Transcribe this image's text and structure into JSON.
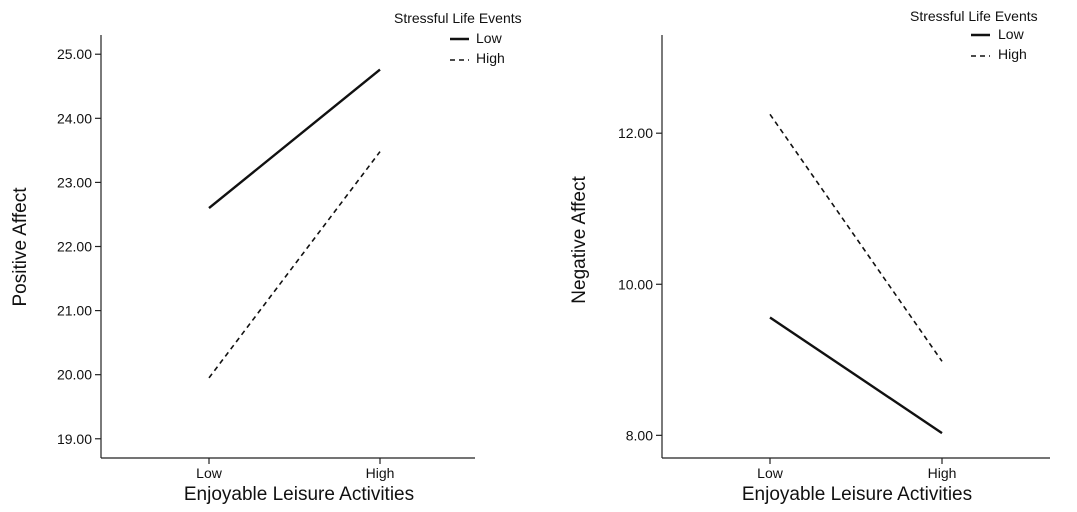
{
  "chart_data": [
    {
      "type": "line",
      "xlabel": "Enjoyable Leisure Activities",
      "ylabel": "Positive Affect",
      "categories": [
        "Low",
        "High"
      ],
      "ylim": [
        18.7,
        25.3
      ],
      "yticks": [
        19,
        20,
        21,
        22,
        23,
        24,
        25
      ],
      "ytick_labels": [
        "19.00",
        "20.00",
        "21.00",
        "22.00",
        "23.00",
        "24.00",
        "25.00"
      ],
      "legend": {
        "title": "Stressful Life Events",
        "placement": "top-right"
      },
      "series": [
        {
          "name": "Low",
          "style": "solid",
          "values": [
            22.6,
            24.76
          ]
        },
        {
          "name": "High",
          "style": "dashed",
          "values": [
            19.95,
            23.48
          ]
        }
      ],
      "grid": false
    },
    {
      "type": "line",
      "xlabel": "Enjoyable Leisure Activities",
      "ylabel": "Negative Affect",
      "categories": [
        "Low",
        "High"
      ],
      "ylim": [
        7.7,
        13.3
      ],
      "yticks": [
        8,
        10,
        12
      ],
      "ytick_labels": [
        "8.00",
        "10.00",
        "12.00"
      ],
      "legend": {
        "title": "Stressful Life Events",
        "placement": "top-right"
      },
      "series": [
        {
          "name": "Low",
          "style": "solid",
          "values": [
            9.56,
            8.03
          ]
        },
        {
          "name": "High",
          "style": "dashed",
          "values": [
            12.25,
            8.98
          ]
        }
      ],
      "grid": false
    }
  ]
}
